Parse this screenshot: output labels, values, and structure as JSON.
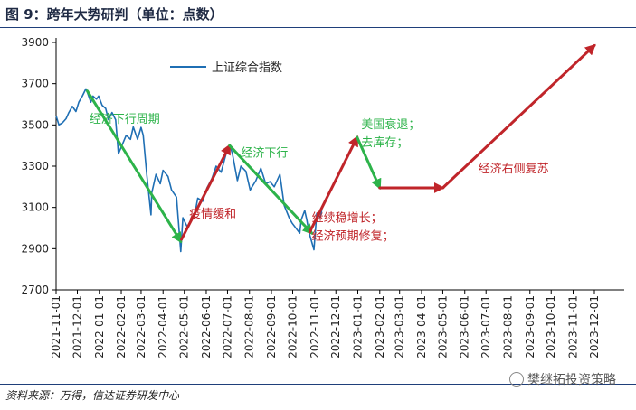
{
  "page": {
    "title": "图 9：跨年大势研判（单位：点数）",
    "source": "资料来源：万得，信达证券研发中心",
    "watermark": "樊继拓投资策略"
  },
  "colors": {
    "index_line": "#1f6fb4",
    "down_trend": "#2db34a",
    "up_trend": "#c0252a",
    "axis": "#000000",
    "rule": "#1f3f7a"
  },
  "chart_data": {
    "type": "line",
    "title": "",
    "xlabel": "",
    "ylabel": "",
    "ylim": [
      2700,
      3900
    ],
    "yticks": [
      2700,
      2900,
      3100,
      3300,
      3500,
      3700,
      3900
    ],
    "xticks": [
      "2021-11-01",
      "2021-12-01",
      "2022-01-01",
      "2022-02-01",
      "2022-03-01",
      "2022-04-01",
      "2022-05-01",
      "2022-06-01",
      "2022-07-01",
      "2022-08-01",
      "2022-09-01",
      "2022-10-01",
      "2022-11-01",
      "2022-12-01",
      "2023-01-01",
      "2023-02-01",
      "2023-03-01",
      "2023-04-01",
      "2023-05-01",
      "2023-06-01",
      "2023-07-01",
      "2023-08-01",
      "2023-09-01",
      "2023-10-01",
      "2023-11-01",
      "2023-12-01"
    ],
    "legend": {
      "position": "top-left",
      "entries": [
        "上证综合指数"
      ]
    },
    "series": [
      {
        "name": "上证综合指数",
        "color": "#1f6fb4",
        "points": [
          [
            "2021-11-01",
            3545
          ],
          [
            "2021-11-05",
            3500
          ],
          [
            "2021-11-10",
            3510
          ],
          [
            "2021-11-15",
            3530
          ],
          [
            "2021-11-19",
            3560
          ],
          [
            "2021-11-24",
            3590
          ],
          [
            "2021-11-29",
            3565
          ],
          [
            "2021-12-03",
            3610
          ],
          [
            "2021-12-08",
            3640
          ],
          [
            "2021-12-13",
            3675
          ],
          [
            "2021-12-15",
            3660
          ],
          [
            "2021-12-20",
            3610
          ],
          [
            "2021-12-23",
            3640
          ],
          [
            "2021-12-28",
            3625
          ],
          [
            "2021-12-31",
            3640
          ],
          [
            "2022-01-05",
            3595
          ],
          [
            "2022-01-10",
            3580
          ],
          [
            "2022-01-14",
            3525
          ],
          [
            "2022-01-19",
            3560
          ],
          [
            "2022-01-24",
            3525
          ],
          [
            "2022-01-28",
            3360
          ],
          [
            "2022-02-08",
            3450
          ],
          [
            "2022-02-14",
            3430
          ],
          [
            "2022-02-18",
            3490
          ],
          [
            "2022-02-24",
            3430
          ],
          [
            "2022-03-01",
            3488
          ],
          [
            "2022-03-04",
            3450
          ],
          [
            "2022-03-09",
            3260
          ],
          [
            "2022-03-15",
            3064
          ],
          [
            "2022-03-16",
            3170
          ],
          [
            "2022-03-22",
            3260
          ],
          [
            "2022-03-28",
            3215
          ],
          [
            "2022-04-01",
            3280
          ],
          [
            "2022-04-08",
            3250
          ],
          [
            "2022-04-13",
            3185
          ],
          [
            "2022-04-20",
            3150
          ],
          [
            "2022-04-25",
            2930
          ],
          [
            "2022-04-26",
            2886
          ],
          [
            "2022-04-29",
            3050
          ],
          [
            "2022-05-06",
            3000
          ],
          [
            "2022-05-10",
            3040
          ],
          [
            "2022-05-16",
            3070
          ],
          [
            "2022-05-20",
            3145
          ],
          [
            "2022-05-27",
            3130
          ],
          [
            "2022-06-02",
            3195
          ],
          [
            "2022-06-09",
            3240
          ],
          [
            "2022-06-15",
            3300
          ],
          [
            "2022-06-22",
            3270
          ],
          [
            "2022-06-29",
            3360
          ],
          [
            "2022-07-04",
            3405
          ],
          [
            "2022-07-08",
            3360
          ],
          [
            "2022-07-15",
            3230
          ],
          [
            "2022-07-20",
            3300
          ],
          [
            "2022-07-27",
            3275
          ],
          [
            "2022-08-02",
            3185
          ],
          [
            "2022-08-10",
            3230
          ],
          [
            "2022-08-17",
            3290
          ],
          [
            "2022-08-24",
            3215
          ],
          [
            "2022-08-30",
            3225
          ],
          [
            "2022-09-05",
            3200
          ],
          [
            "2022-09-13",
            3260
          ],
          [
            "2022-09-19",
            3110
          ],
          [
            "2022-09-26",
            3050
          ],
          [
            "2022-09-30",
            3025
          ],
          [
            "2022-10-11",
            2975
          ],
          [
            "2022-10-13",
            3040
          ],
          [
            "2022-10-18",
            3085
          ],
          [
            "2022-10-21",
            3040
          ],
          [
            "2022-10-24",
            2980
          ],
          [
            "2022-10-31",
            2895
          ],
          [
            "2022-11-04",
            3071
          ],
          [
            "2022-11-09",
            3050
          ],
          [
            "2022-11-11",
            3085
          ]
        ]
      }
    ],
    "trend_arrows": [
      {
        "direction": "down",
        "color": "#2db34a",
        "from": [
          "2021-12-15",
          3665
        ],
        "to": [
          "2022-04-26",
          2935
        ]
      },
      {
        "direction": "up",
        "color": "#c0252a",
        "from": [
          "2022-04-27",
          2945
        ],
        "to": [
          "2022-07-04",
          3400
        ]
      },
      {
        "direction": "down",
        "color": "#2db34a",
        "from": [
          "2022-07-04",
          3400
        ],
        "to": [
          "2022-10-28",
          2975
        ]
      },
      {
        "direction": "up",
        "color": "#c0252a",
        "from": [
          "2022-10-25",
          2980
        ],
        "to": [
          "2022-12-31",
          3440
        ]
      },
      {
        "direction": "down",
        "color": "#2db34a",
        "from": [
          "2022-12-31",
          3440
        ],
        "to": [
          "2023-02-01",
          3195
        ]
      },
      {
        "direction": "flat",
        "color": "#c0252a",
        "from": [
          "2023-02-01",
          3195
        ],
        "to": [
          "2023-05-01",
          3195
        ]
      },
      {
        "direction": "up",
        "color": "#c0252a",
        "from": [
          "2023-05-01",
          3195
        ],
        "to": [
          "2023-12-01",
          3885
        ]
      }
    ],
    "annotations": [
      {
        "lines": [
          "经济下行周期"
        ],
        "color": "#2db34a",
        "at": [
          "2021-12-18",
          3510
        ]
      },
      {
        "lines": [
          "疫情缓和"
        ],
        "color": "#c0252a",
        "at": [
          "2022-05-08",
          3050
        ]
      },
      {
        "lines": [
          "经济下行"
        ],
        "color": "#2db34a",
        "at": [
          "2022-07-20",
          3345
        ]
      },
      {
        "lines": [
          "继续稳增长；",
          "经济预期修复；"
        ],
        "color": "#c0252a",
        "at": [
          "2022-10-28",
          3030
        ]
      },
      {
        "lines": [
          "美国衰退；",
          "去库存；"
        ],
        "color": "#2db34a",
        "at": [
          "2023-01-06",
          3485
        ]
      },
      {
        "lines": [
          "经济右侧复苏"
        ],
        "color": "#c0252a",
        "at": [
          "2023-06-20",
          3270
        ]
      }
    ]
  }
}
